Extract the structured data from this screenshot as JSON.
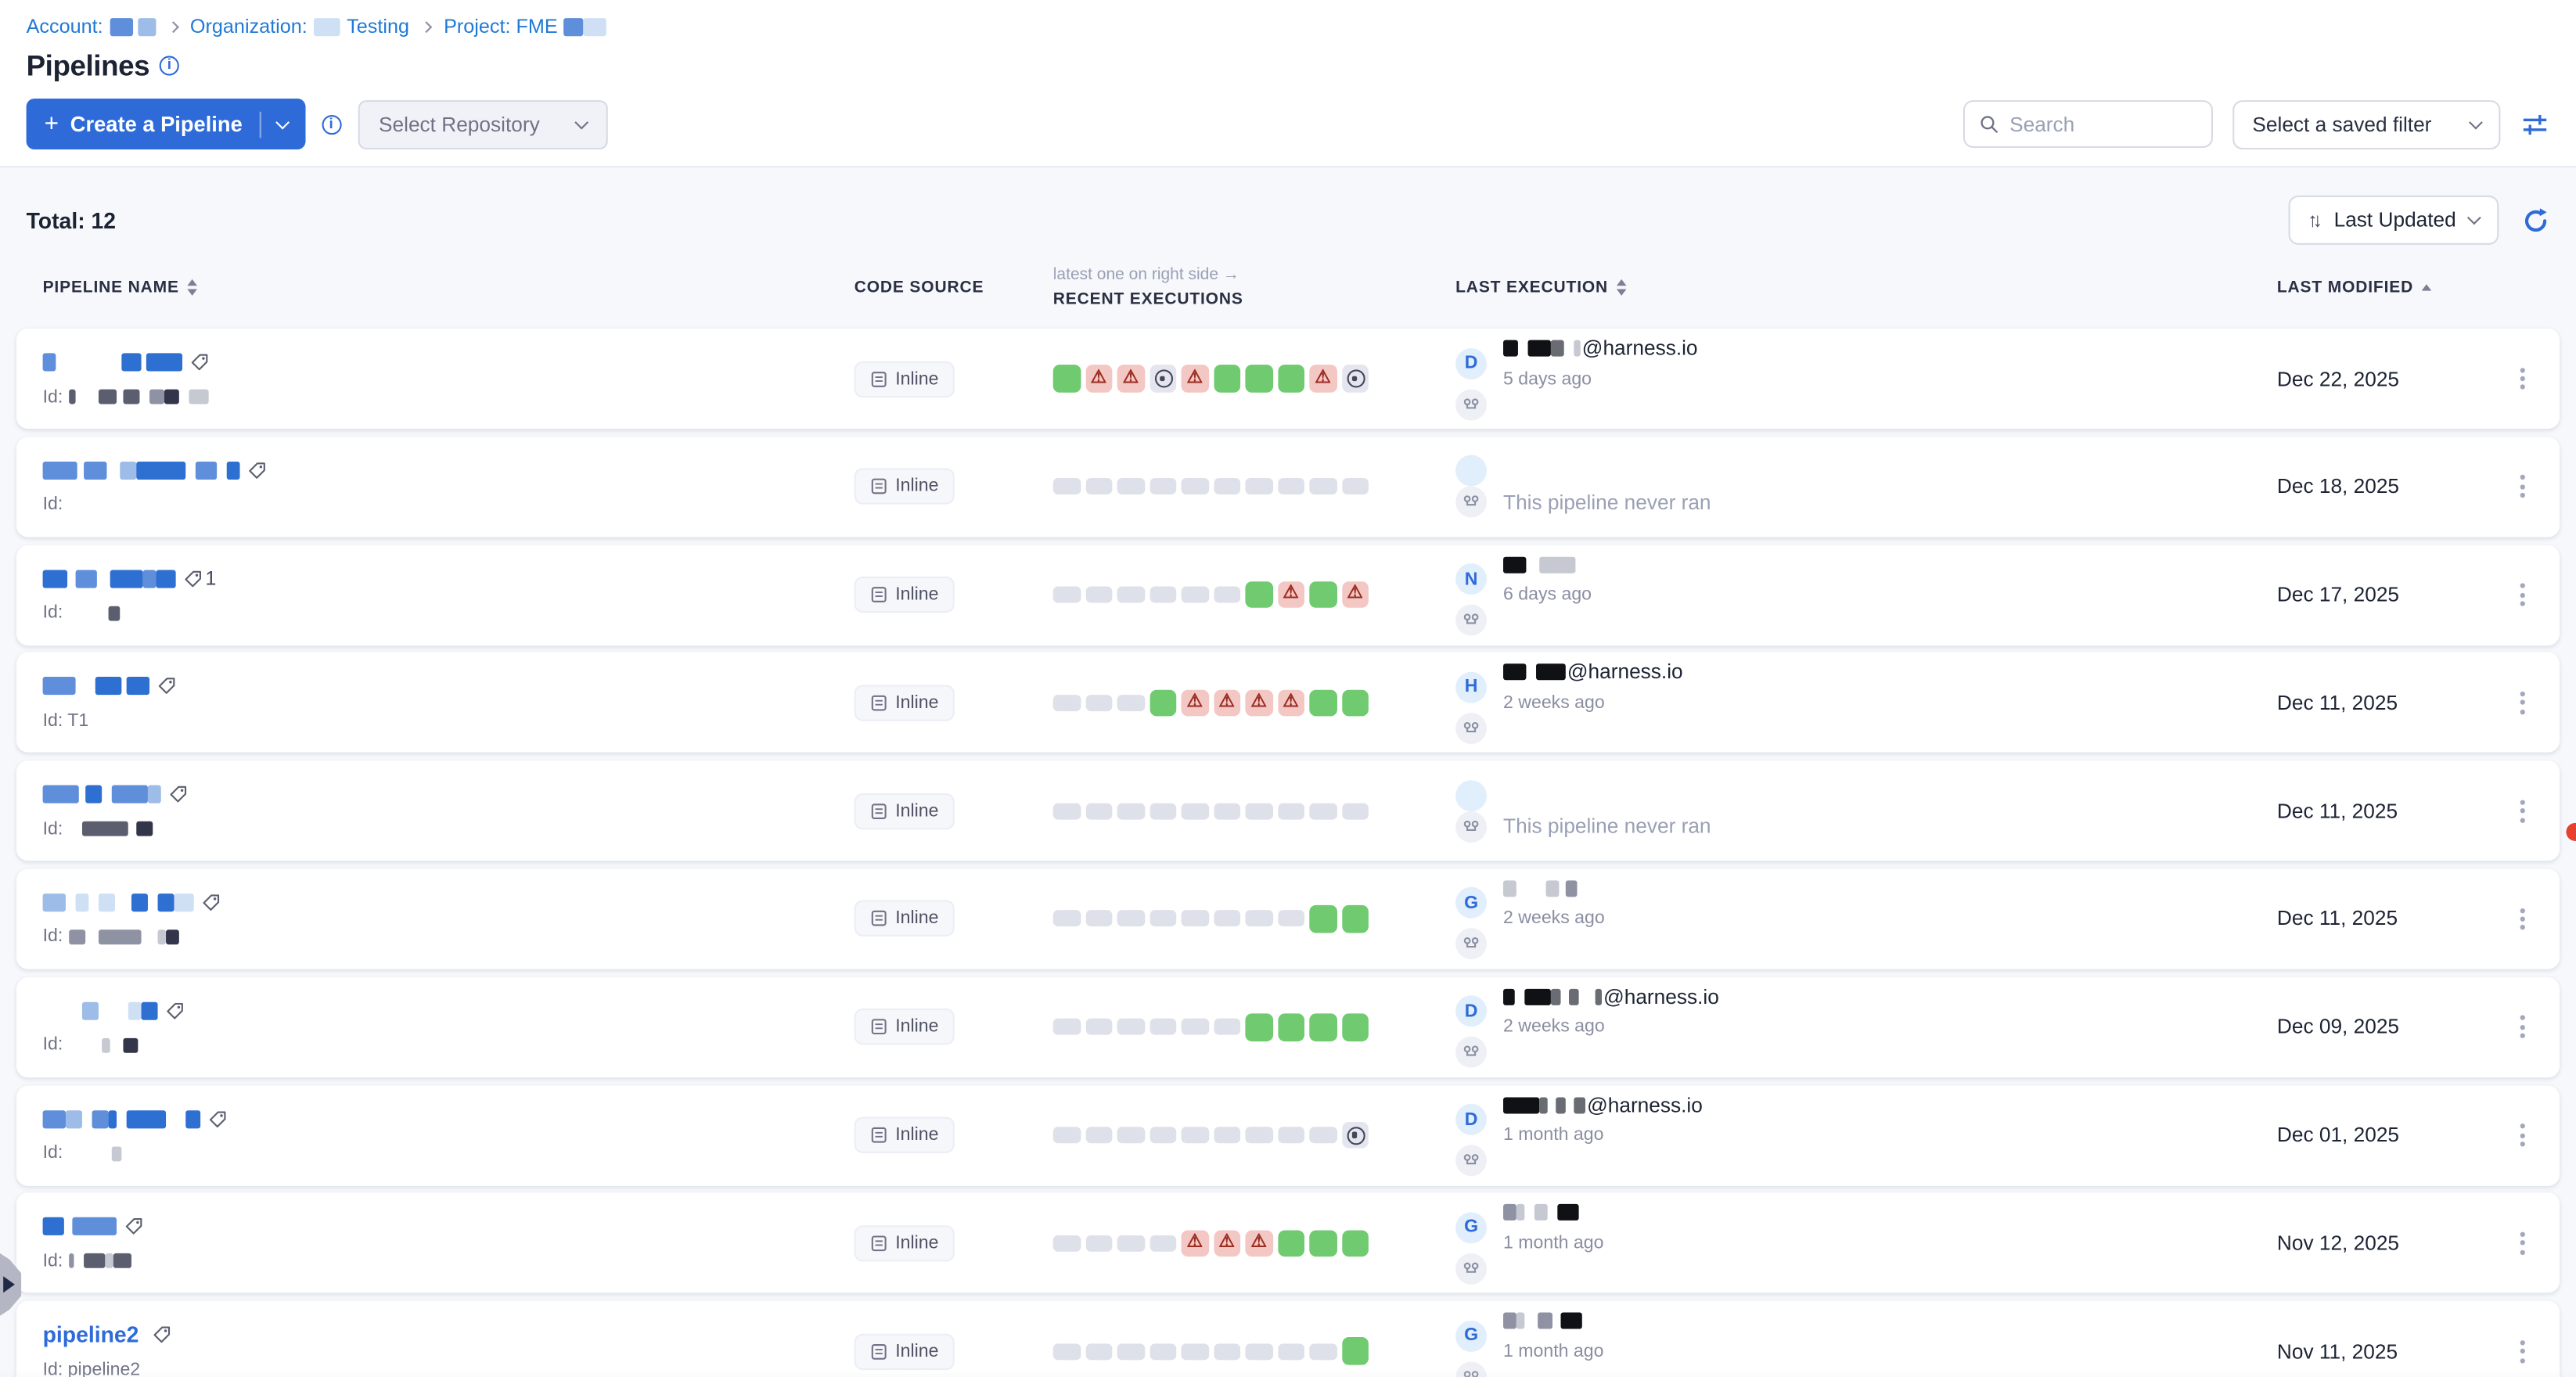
{
  "breadcrumb": {
    "account_label": "Account:",
    "account_blocks": [
      [
        14,
        "b2"
      ],
      [
        3,
        "x"
      ],
      [
        11,
        "b1"
      ]
    ],
    "organization_label": "Organization:",
    "org_blocks": [
      [
        16,
        "b4"
      ]
    ],
    "org_name": "Testing",
    "project_label": "Project: FME",
    "project_blocks": [
      [
        12,
        "b2"
      ],
      [
        14,
        "b4"
      ]
    ]
  },
  "page": {
    "title": "Pipelines"
  },
  "toolbar": {
    "create_button": "Create a Pipeline",
    "select_repository": "Select Repository",
    "search_placeholder": "Search",
    "saved_filter": "Select a saved filter"
  },
  "list_header": {
    "total": "Total: 12",
    "sort": "Last Updated"
  },
  "table": {
    "columns": [
      "PIPELINE NAME",
      "CODE SOURCE",
      "RECENT EXECUTIONS",
      "LAST EXECUTION",
      "LAST MODIFIED"
    ],
    "recent_hint": "latest one on right side →",
    "executions_legend": {
      "S": "success",
      "F": "failed",
      "A": "aborted",
      "E": "empty"
    }
  },
  "colors": {
    "primary": "#2e6bd8",
    "success": "#70ca70",
    "fail_bg": "#f2c7c4",
    "fail_fg": "#9c2b20",
    "aborted_fg": "#434759",
    "empty_slot": "#dfe1ea",
    "redaction": {
      "b1": "#9dbce8",
      "b2": "#5f8fdb",
      "b3": "#2e6fd2",
      "b4": "#cfe0f5",
      "g1": "#c6c8d2",
      "g2": "#8f92a3",
      "g3": "#5a5e6e",
      "g4": "#33364a",
      "k1": "#101114",
      "k2": "#6a6c74",
      "x": "transparent"
    }
  },
  "rows": [
    {
      "name_blocks": [
        [
          8,
          "b2"
        ],
        [
          40,
          "x"
        ],
        [
          12,
          "b3"
        ],
        [
          3,
          "x"
        ],
        [
          22,
          "b3"
        ]
      ],
      "id_label": "Id:",
      "id_blocks": [
        [
          4,
          "g3"
        ],
        [
          14,
          "x"
        ],
        [
          11,
          "g3"
        ],
        [
          4,
          "x"
        ],
        [
          10,
          "g3"
        ],
        [
          6,
          "x"
        ],
        [
          9,
          "g2"
        ],
        [
          9,
          "g4"
        ],
        [
          6,
          "x"
        ],
        [
          12,
          "g1"
        ]
      ],
      "code_source": "Inline",
      "executions": [
        "S",
        "F",
        "F",
        "A",
        "F",
        "S",
        "S",
        "S",
        "F",
        "A"
      ],
      "last_execution": {
        "type": "user",
        "initial": "D",
        "blocks": [
          [
            9,
            "k1"
          ],
          [
            6,
            "x"
          ],
          [
            14,
            "k1"
          ],
          [
            8,
            "k2"
          ],
          [
            6,
            "x"
          ],
          [
            4,
            "g1"
          ]
        ],
        "email": "@harness.io",
        "ago": "5 days ago"
      },
      "modified": "Dec 22, 2025"
    },
    {
      "name_blocks": [
        [
          21,
          "b2"
        ],
        [
          4,
          "x"
        ],
        [
          14,
          "b2"
        ],
        [
          8,
          "x"
        ],
        [
          10,
          "b1"
        ],
        [
          30,
          "b3"
        ],
        [
          6,
          "x"
        ],
        [
          13,
          "b2"
        ],
        [
          6,
          "x"
        ],
        [
          8,
          "b3"
        ]
      ],
      "id_label": "Id:",
      "id_blocks": [],
      "code_source": "Inline",
      "executions": [
        "E",
        "E",
        "E",
        "E",
        "E",
        "E",
        "E",
        "E",
        "E",
        "E"
      ],
      "last_execution": {
        "type": "never",
        "text": "This pipeline never ran"
      },
      "modified": "Dec 18, 2025"
    },
    {
      "name_blocks": [
        [
          15,
          "b3"
        ],
        [
          5,
          "x"
        ],
        [
          13,
          "b2"
        ],
        [
          8,
          "x"
        ],
        [
          20,
          "b3"
        ],
        [
          8,
          "b2"
        ],
        [
          12,
          "b3"
        ]
      ],
      "tag_count": "1",
      "id_label": "Id:",
      "id_blocks": [
        [
          24,
          "x"
        ],
        [
          7,
          "g3"
        ]
      ],
      "code_source": "Inline",
      "executions": [
        "E",
        "E",
        "E",
        "E",
        "E",
        "E",
        "S",
        "F",
        "S",
        "F"
      ],
      "last_execution": {
        "type": "user",
        "initial": "N",
        "blocks": [
          [
            14,
            "k1"
          ],
          [
            8,
            "x"
          ],
          [
            22,
            "g1"
          ]
        ],
        "email": "",
        "ago": "6 days ago"
      },
      "modified": "Dec 17, 2025"
    },
    {
      "name_blocks": [
        [
          20,
          "b2"
        ],
        [
          12,
          "x"
        ],
        [
          16,
          "b3"
        ],
        [
          3,
          "x"
        ],
        [
          14,
          "b3"
        ]
      ],
      "id_label": "Id: T1",
      "id_blocks": [],
      "code_source": "Inline",
      "executions": [
        "E",
        "E",
        "E",
        "S",
        "F",
        "F",
        "F",
        "F",
        "S",
        "S"
      ],
      "last_execution": {
        "type": "user",
        "initial": "H",
        "blocks": [
          [
            14,
            "k1"
          ],
          [
            6,
            "x"
          ],
          [
            18,
            "k1"
          ]
        ],
        "email": "@harness.io",
        "ago": "2 weeks ago"
      },
      "modified": "Dec 11, 2025"
    },
    {
      "name_blocks": [
        [
          22,
          "b2"
        ],
        [
          4,
          "x"
        ],
        [
          10,
          "b3"
        ],
        [
          6,
          "x"
        ],
        [
          22,
          "b2"
        ],
        [
          8,
          "b1"
        ]
      ],
      "id_label": "Id:",
      "id_blocks": [
        [
          8,
          "x"
        ],
        [
          28,
          "g3"
        ],
        [
          5,
          "x"
        ],
        [
          10,
          "g4"
        ]
      ],
      "code_source": "Inline",
      "executions": [
        "E",
        "E",
        "E",
        "E",
        "E",
        "E",
        "E",
        "E",
        "E",
        "E"
      ],
      "last_execution": {
        "type": "never",
        "text": "This pipeline never ran"
      },
      "modified": "Dec 11, 2025"
    },
    {
      "name_blocks": [
        [
          14,
          "b1"
        ],
        [
          6,
          "x"
        ],
        [
          8,
          "b4"
        ],
        [
          6,
          "x"
        ],
        [
          10,
          "b4"
        ],
        [
          10,
          "x"
        ],
        [
          10,
          "b3"
        ],
        [
          6,
          "x"
        ],
        [
          10,
          "b3"
        ],
        [
          12,
          "b4"
        ]
      ],
      "id_label": "Id:",
      "id_blocks": [
        [
          10,
          "g2"
        ],
        [
          8,
          "x"
        ],
        [
          26,
          "g2"
        ],
        [
          10,
          "x"
        ],
        [
          5,
          "g1"
        ],
        [
          8,
          "g4"
        ]
      ],
      "code_source": "Inline",
      "executions": [
        "E",
        "E",
        "E",
        "E",
        "E",
        "E",
        "E",
        "E",
        "S",
        "S"
      ],
      "last_execution": {
        "type": "user",
        "initial": "G",
        "blocks": [
          [
            8,
            "g1"
          ],
          [
            18,
            "x"
          ],
          [
            8,
            "g1"
          ],
          [
            4,
            "x"
          ],
          [
            7,
            "g2"
          ]
        ],
        "email": "",
        "ago": "2 weeks ago"
      },
      "modified": "Dec 11, 2025"
    },
    {
      "name_blocks": [
        [
          24,
          "x"
        ],
        [
          10,
          "b1"
        ],
        [
          18,
          "x"
        ],
        [
          8,
          "b4"
        ],
        [
          10,
          "b3"
        ]
      ],
      "id_label": "Id:",
      "id_blocks": [
        [
          20,
          "x"
        ],
        [
          5,
          "g1"
        ],
        [
          8,
          "x"
        ],
        [
          9,
          "g4"
        ]
      ],
      "code_source": "Inline",
      "executions": [
        "E",
        "E",
        "E",
        "E",
        "E",
        "E",
        "S",
        "S",
        "S",
        "S"
      ],
      "last_execution": {
        "type": "user",
        "initial": "D",
        "blocks": [
          [
            7,
            "k1"
          ],
          [
            6,
            "x"
          ],
          [
            16,
            "k1"
          ],
          [
            6,
            "k2"
          ],
          [
            5,
            "x"
          ],
          [
            6,
            "k2"
          ],
          [
            10,
            "x"
          ],
          [
            4,
            "k2"
          ]
        ],
        "email": "@harness.io",
        "ago": "2 weeks ago"
      },
      "modified": "Dec 09, 2025"
    },
    {
      "name_blocks": [
        [
          14,
          "b2"
        ],
        [
          10,
          "b1"
        ],
        [
          6,
          "x"
        ],
        [
          10,
          "b2"
        ],
        [
          5,
          "b3"
        ],
        [
          6,
          "x"
        ],
        [
          24,
          "b3"
        ],
        [
          12,
          "x"
        ],
        [
          9,
          "b3"
        ]
      ],
      "id_label": "Id:",
      "id_blocks": [
        [
          26,
          "x"
        ],
        [
          6,
          "g1"
        ]
      ],
      "code_source": "Inline",
      "executions": [
        "E",
        "E",
        "E",
        "E",
        "E",
        "E",
        "E",
        "E",
        "E",
        "A"
      ],
      "last_execution": {
        "type": "user",
        "initial": "D",
        "blocks": [
          [
            22,
            "k1"
          ],
          [
            5,
            "k2"
          ],
          [
            5,
            "x"
          ],
          [
            6,
            "k2"
          ],
          [
            5,
            "x"
          ],
          [
            7,
            "k2"
          ]
        ],
        "email": "@harness.io",
        "ago": "1 month ago"
      },
      "modified": "Dec 01, 2025"
    },
    {
      "name_blocks": [
        [
          13,
          "b3"
        ],
        [
          5,
          "x"
        ],
        [
          27,
          "b2"
        ]
      ],
      "id_label": "Id:",
      "id_blocks": [
        [
          3,
          "g2"
        ],
        [
          6,
          "x"
        ],
        [
          13,
          "g3"
        ],
        [
          5,
          "g1"
        ],
        [
          11,
          "g3"
        ]
      ],
      "code_source": "Inline",
      "executions": [
        "E",
        "E",
        "E",
        "E",
        "F",
        "F",
        "F",
        "S",
        "S",
        "S"
      ],
      "last_execution": {
        "type": "user",
        "initial": "G",
        "blocks": [
          [
            8,
            "g2"
          ],
          [
            5,
            "g1"
          ],
          [
            6,
            "x"
          ],
          [
            8,
            "g1"
          ],
          [
            6,
            "x"
          ],
          [
            13,
            "k1"
          ]
        ],
        "email": "",
        "ago": "1 month ago"
      },
      "modified": "Nov 12, 2025"
    },
    {
      "name_text": "pipeline2",
      "name_blocks": [],
      "id_label": "Id: pipeline2",
      "id_blocks": [],
      "code_source": "Inline",
      "executions": [
        "E",
        "E",
        "E",
        "E",
        "E",
        "E",
        "E",
        "E",
        "E",
        "S"
      ],
      "last_execution": {
        "type": "user",
        "initial": "G",
        "blocks": [
          [
            8,
            "g2"
          ],
          [
            5,
            "g1"
          ],
          [
            8,
            "x"
          ],
          [
            9,
            "g2"
          ],
          [
            5,
            "x"
          ],
          [
            13,
            "k1"
          ]
        ],
        "email": "",
        "ago": "1 month ago"
      },
      "modified": "Nov 11, 2025"
    }
  ]
}
